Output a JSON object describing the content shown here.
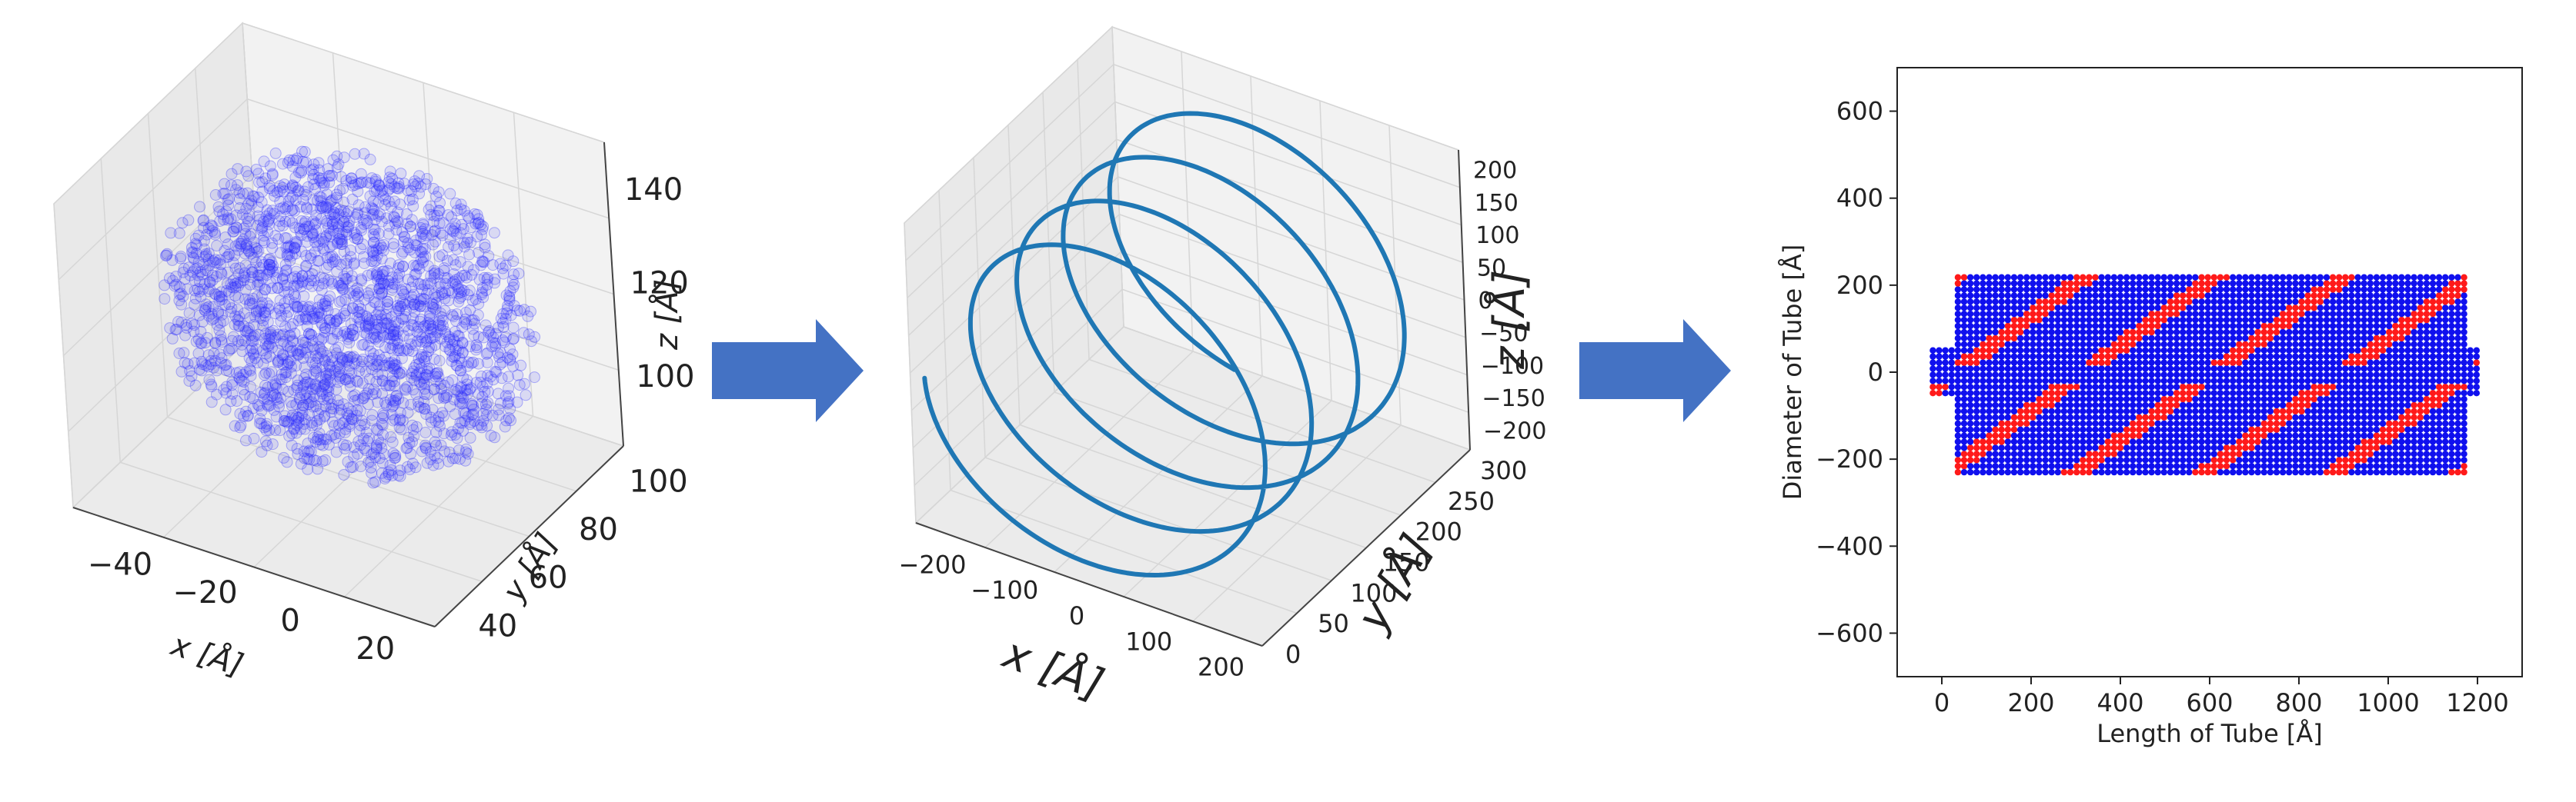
{
  "colors": {
    "point_blue": "#2b2bff",
    "helix": "#1f77b4",
    "red": "#ff1a1a",
    "blue": "#1010ee",
    "arrow": "#4472c4",
    "pane": "#f2f2f2",
    "grid": "#d6d6d6"
  },
  "chart_data": [
    {
      "type": "scatter",
      "name": "scatter3d",
      "x_ticks": [
        "−40",
        "−20",
        "0",
        "20"
      ],
      "y_ticks": [
        "40",
        "60",
        "80",
        "100"
      ],
      "z_ticks": [
        "100",
        "120",
        "140"
      ],
      "xlabel": "x [Å]",
      "ylabel": "y [Å]",
      "zlabel": "z [Å]",
      "xlim": [
        -55,
        30
      ],
      "ylim": [
        35,
        110
      ],
      "zlim": [
        85,
        150
      ]
    },
    {
      "type": "line",
      "name": "helix3d",
      "helix": {
        "radius": 220,
        "turns": 4.2,
        "x_center": 0,
        "z_center": 0,
        "y_range": [
          0,
          300
        ]
      },
      "x_ticks": [
        "−200",
        "−100",
        "0",
        "100",
        "200"
      ],
      "y_ticks": [
        "0",
        "50",
        "100",
        "150",
        "200",
        "250",
        "300"
      ],
      "z_ticks": [
        "200",
        "150",
        "100",
        "50",
        "0",
        "−50",
        "−100",
        "−150",
        "−200"
      ],
      "xlabel": "x [Å]",
      "ylabel": "y [Å]",
      "zlabel": "z [Å]"
    },
    {
      "type": "scatter",
      "name": "tube2d",
      "xlim": [
        -100,
        1300
      ],
      "ylim": [
        -700,
        700
      ],
      "x_ticks": [
        "0",
        "200",
        "400",
        "600",
        "800",
        "1000",
        "1200"
      ],
      "y_ticks": [
        "600",
        "400",
        "200",
        "0",
        "−200",
        "−400",
        "−600"
      ],
      "xlabel": "Length of Tube [Å]",
      "ylabel": "Diameter of Tube [Å]",
      "tube": {
        "length_range": [
          0,
          1210
        ],
        "diameter_range": [
          -230,
          230
        ],
        "series": [
          "red",
          "blue"
        ]
      }
    }
  ]
}
